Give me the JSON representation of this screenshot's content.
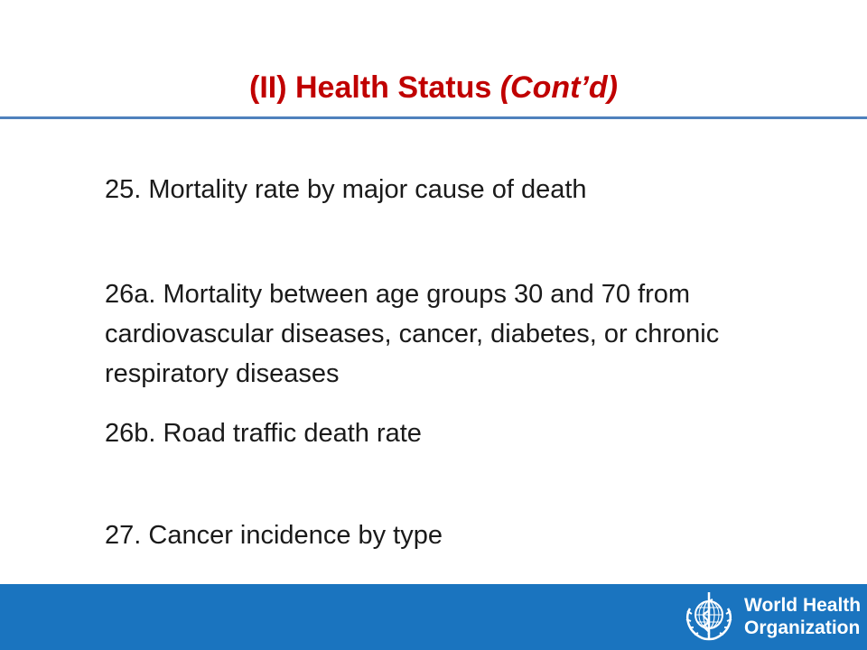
{
  "title": {
    "main": "(II) Health Status",
    "suffix": "(Cont’d)"
  },
  "items": [
    "25. Mortality rate by major cause of death",
    "26a. Mortality between age groups 30 and 70 from cardiovascular diseases, cancer, diabetes, or chronic respiratory diseases",
    "26b. Road traffic death rate",
    "27. Cancer incidence by type"
  ],
  "footer": {
    "org_line1": "World Health",
    "org_line2": "Organization",
    "color": "#1a74bf"
  },
  "colors": {
    "title": "#c00000",
    "rule": "#4f81bd"
  },
  "icons": {
    "logo": "who-emblem-icon"
  }
}
